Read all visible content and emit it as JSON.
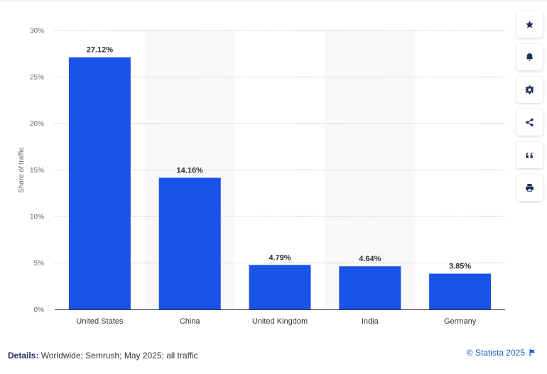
{
  "chart_data": {
    "type": "bar",
    "categories": [
      "United States",
      "China",
      "United Kingdom",
      "India",
      "Germany"
    ],
    "values": [
      27.12,
      14.16,
      4.79,
      4.64,
      3.85
    ],
    "value_labels": [
      "27.12%",
      "14.16%",
      "4.79%",
      "4.64%",
      "3.85%"
    ],
    "ylabel": "Share of traffic",
    "ylim": [
      0,
      30
    ],
    "yticks": [
      0,
      5,
      10,
      15,
      20,
      25,
      30
    ],
    "ytick_labels": [
      "0%",
      "5%",
      "10%",
      "15%",
      "20%",
      "25%",
      "30%"
    ],
    "bar_color": "#1a53e8",
    "grid": true,
    "legend": "none"
  },
  "toolbar": {
    "items": [
      {
        "name": "favorite-button",
        "icon": "star-icon"
      },
      {
        "name": "notification-button",
        "icon": "bell-icon"
      },
      {
        "name": "settings-button",
        "icon": "gear-icon"
      },
      {
        "name": "share-button",
        "icon": "share-icon"
      },
      {
        "name": "cite-button",
        "icon": "quote-icon"
      },
      {
        "name": "print-button",
        "icon": "printer-icon"
      }
    ]
  },
  "footer": {
    "details_label": "Details:",
    "details_text": " Worldwide; Semrush; May 2025; all traffic",
    "credit": "© Statista 2025",
    "credit_icon": "flag-icon"
  }
}
